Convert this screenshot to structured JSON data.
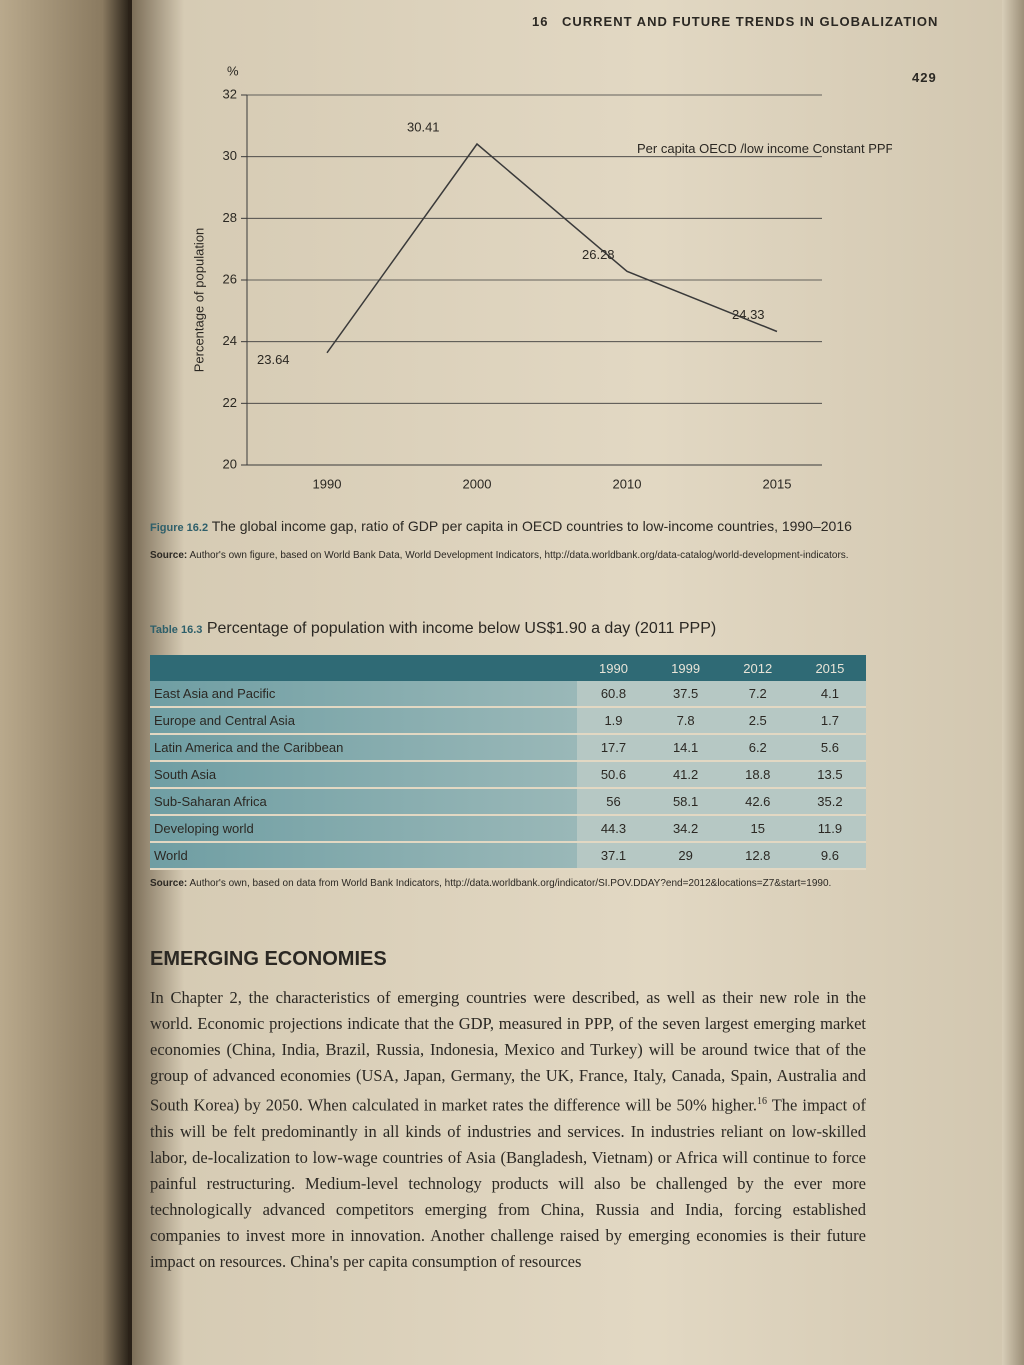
{
  "header": {
    "chapter": "16",
    "running_title": "CURRENT AND FUTURE TRENDS IN GLOBALIZATION",
    "page_number": "429"
  },
  "chart_data": {
    "type": "line",
    "y_unit": "%",
    "y_label": "Percentage of population",
    "categories": [
      "1990",
      "2000",
      "2010",
      "2015"
    ],
    "series": [
      {
        "name": "Per capita OECD /low income Constant PPP US$",
        "color": "#3a3a3a",
        "values": [
          23.64,
          30.41,
          26.28,
          24.33
        ]
      }
    ],
    "ylim": [
      20,
      32
    ],
    "yticks": [
      20,
      22,
      24,
      26,
      28,
      30,
      32
    ],
    "grid": true
  },
  "figure_caption": {
    "label": "Figure 16.2",
    "text": "The global income gap, ratio of GDP per capita in OECD countries to low-income countries, 1990–2016",
    "source_label": "Source:",
    "source": "Author's own figure, based on World Bank Data, World Development Indicators, http://data.worldbank.org/data-catalog/world-development-indicators."
  },
  "table": {
    "label": "Table 16.3",
    "title": "Percentage of population with income below US$1.90 a day (2011 PPP)",
    "columns": [
      "1990",
      "1999",
      "2012",
      "2015"
    ],
    "rows": [
      [
        "East Asia and Pacific",
        60.8,
        37.5,
        7.2,
        4.1
      ],
      [
        "Europe and Central Asia",
        1.9,
        7.8,
        2.5,
        1.7
      ],
      [
        "Latin America and the Caribbean",
        17.7,
        14.1,
        6.2,
        5.6
      ],
      [
        "South Asia",
        50.6,
        41.2,
        18.8,
        13.5
      ],
      [
        "Sub-Saharan Africa",
        56,
        58.1,
        42.6,
        35.2
      ],
      [
        "Developing world",
        44.3,
        34.2,
        15,
        11.9
      ],
      [
        "World",
        37.1,
        29,
        12.8,
        9.6
      ]
    ],
    "source_label": "Source:",
    "source": "Author's own, based on data from World Bank Indicators, http://data.worldbank.org/indicator/SI.POV.DDAY?end=2012&locations=Z7&start=1990."
  },
  "section": {
    "heading": "EMERGING ECONOMIES",
    "text_before": "In Chapter 2, the characteristics of emerging countries were described, as well as their new role in the world. Economic projections indicate that the GDP, measured in PPP, of the seven largest emerging market economies (China, India, Brazil, Russia, Indonesia, Mexico and Turkey) will be around twice that of the group of advanced economies (USA, Japan, Germany, the UK, France, Italy, Canada, Spain, Australia and South Korea) by 2050. When calculated in market rates the difference will be 50% higher.",
    "footnote_ref": "16",
    "text_after": " The impact of this will be felt predominantly in all kinds of industries and services. In industries reliant on low-skilled labor, de-localization to low-wage countries of Asia (Bangladesh, Vietnam) or Africa will continue to force painful restructuring. Medium-level technology products will also be challenged by the ever more technologically advanced competitors emerging from China, Russia and India, forcing established companies to invest more in innovation. Another challenge raised by emerging economies is their future impact on resources. China's per capita consumption of resources"
  }
}
